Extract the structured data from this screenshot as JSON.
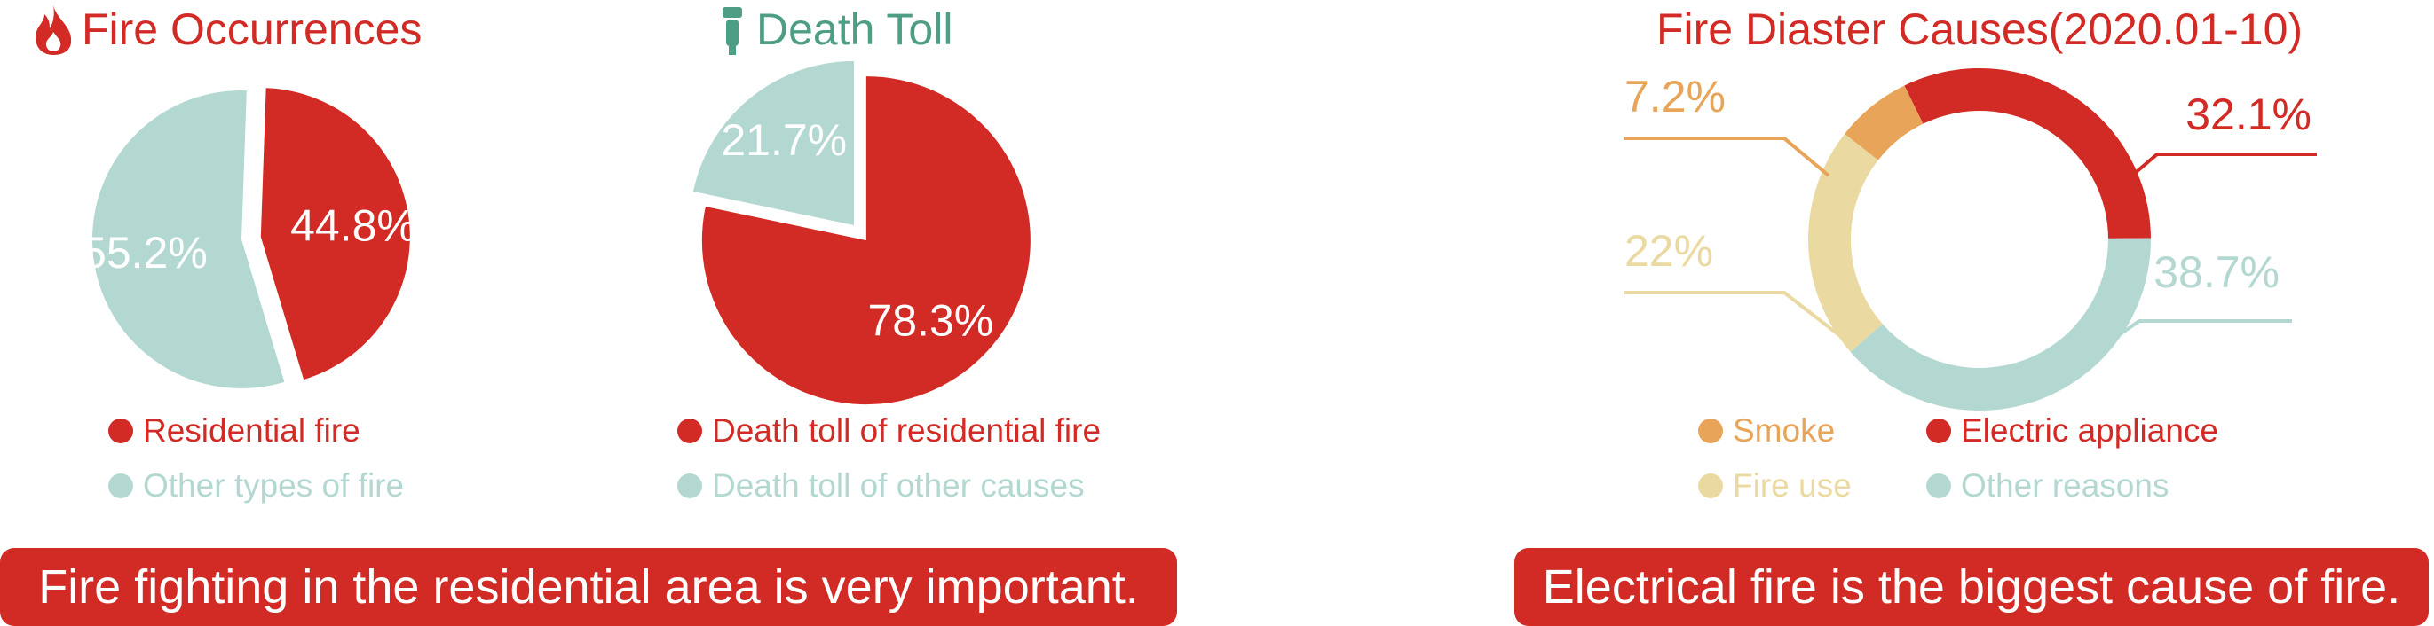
{
  "colors": {
    "red": "#d22a24",
    "teal": "#b3d7d1",
    "orange": "#e8a55a",
    "beige": "#ebd9a2",
    "teal_title": "#4e9e86",
    "white": "#ffffff"
  },
  "icons": {
    "fire": "fire-icon",
    "death": "extinguisher-icon"
  },
  "banners": {
    "left": "Fire fighting in the residential area is very important.",
    "right": "Electrical fire is the biggest cause of fire."
  },
  "chart_data": [
    {
      "type": "pie",
      "title": "Fire Occurrences",
      "slices": [
        {
          "label": "Residential fire",
          "value": 44.8,
          "display": "44.8%",
          "color": "#d22a24",
          "exploded": true
        },
        {
          "label": "Other types of fire",
          "value": 55.2,
          "display": "55.2%",
          "color": "#b3d7d1",
          "exploded": false
        }
      ],
      "legend": [
        "Residential fire",
        "Other types of fire"
      ],
      "legend_position": "bottom"
    },
    {
      "type": "pie",
      "title": "Death Toll",
      "slices": [
        {
          "label": "Death toll of residential fire",
          "value": 78.3,
          "display": "78.3%",
          "color": "#d22a24",
          "exploded": true
        },
        {
          "label": "Death toll of other causes",
          "value": 21.7,
          "display": "21.7%",
          "color": "#b3d7d1",
          "exploded": false
        }
      ],
      "legend": [
        "Death toll of residential fire",
        "Death toll of other causes"
      ],
      "legend_position": "bottom"
    },
    {
      "type": "pie",
      "variant": "donut",
      "title": "Fire Diaster Causes(2020.01-10)",
      "slices": [
        {
          "label": "Electric appliance",
          "value": 32.1,
          "display": "32.1%",
          "color": "#d22a24"
        },
        {
          "label": "Other reasons",
          "value": 38.7,
          "display": "38.7%",
          "color": "#b3d7d1"
        },
        {
          "label": "Fire use",
          "value": 22,
          "display": "22%",
          "color": "#ebd9a2"
        },
        {
          "label": "Smoke",
          "value": 7.2,
          "display": "7.2%",
          "color": "#e8a55a"
        }
      ],
      "legend": [
        "Smoke",
        "Electric appliance",
        "Fire use",
        "Other reasons"
      ],
      "legend_position": "bottom"
    }
  ]
}
